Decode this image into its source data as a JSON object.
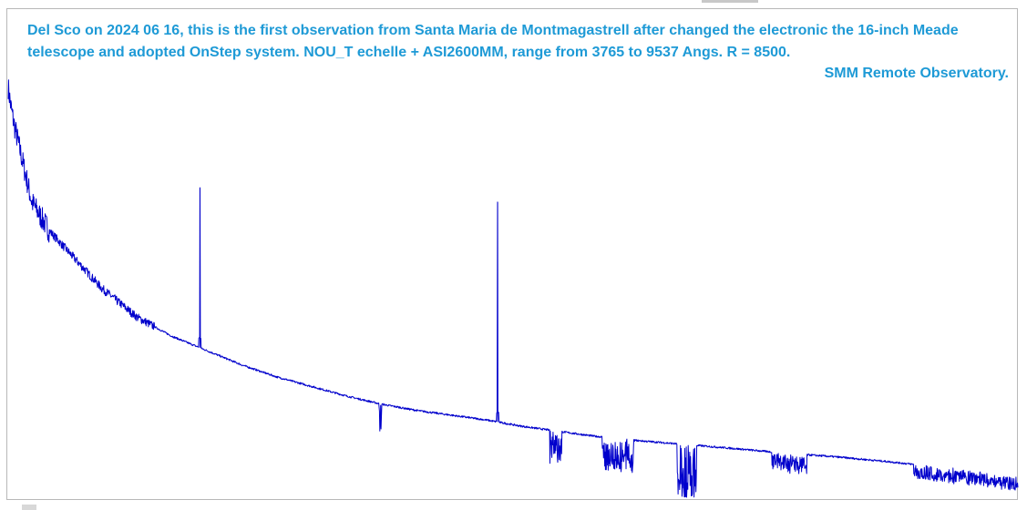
{
  "chart_data": {
    "type": "line",
    "title_lines": [
      "Del Sco on 2024 06 16, this is the first observation from Santa Maria de Montmagastrell after changed  the electronic the 16-inch Meade",
      "telescope and adopted  OnStep system.  NOU_T echelle + ASI2600MM, range from 3765 to 9537 Angs.  R = 8500.",
      "SMM Remote Observatory."
    ],
    "xlabel": "",
    "ylabel": "",
    "xlim": [
      3765,
      9537
    ],
    "ylim": [
      0,
      1
    ],
    "grid": false,
    "axes_visible": false,
    "line_color": "#0000cc",
    "caption_color": "#1e9ad6",
    "continuum": {
      "x": [
        3765,
        3780,
        3800,
        3850,
        3900,
        4000,
        4100,
        4200,
        4300,
        4400,
        4500,
        4700,
        4900,
        5100,
        5300,
        5500,
        5700,
        5900,
        6100,
        6300,
        6500,
        6700,
        6900,
        7100,
        7300,
        7600,
        7900,
        8200,
        8500,
        8800,
        9100,
        9300,
        9537
      ],
      "y": [
        0.86,
        0.82,
        0.78,
        0.7,
        0.62,
        0.56,
        0.52,
        0.48,
        0.44,
        0.41,
        0.38,
        0.34,
        0.31,
        0.28,
        0.255,
        0.235,
        0.215,
        0.198,
        0.185,
        0.175,
        0.165,
        0.152,
        0.142,
        0.132,
        0.124,
        0.115,
        0.106,
        0.096,
        0.088,
        0.078,
        0.066,
        0.058,
        0.046
      ]
    },
    "emission_lines": [
      {
        "x": 4861,
        "peak": 0.65
      },
      {
        "x": 6563,
        "peak": 0.62
      }
    ],
    "absorption_bands": [
      {
        "x1": 5885,
        "x2": 5900,
        "depth": 0.06
      },
      {
        "x1": 6860,
        "x2": 6930,
        "depth": 0.07
      },
      {
        "x1": 7160,
        "x2": 7340,
        "depth": 0.07
      },
      {
        "x1": 7590,
        "x2": 7700,
        "depth": 0.12
      },
      {
        "x1": 8130,
        "x2": 8330,
        "depth": 0.04
      },
      {
        "x1": 8940,
        "x2": 9537,
        "depth": 0.03
      }
    ]
  }
}
